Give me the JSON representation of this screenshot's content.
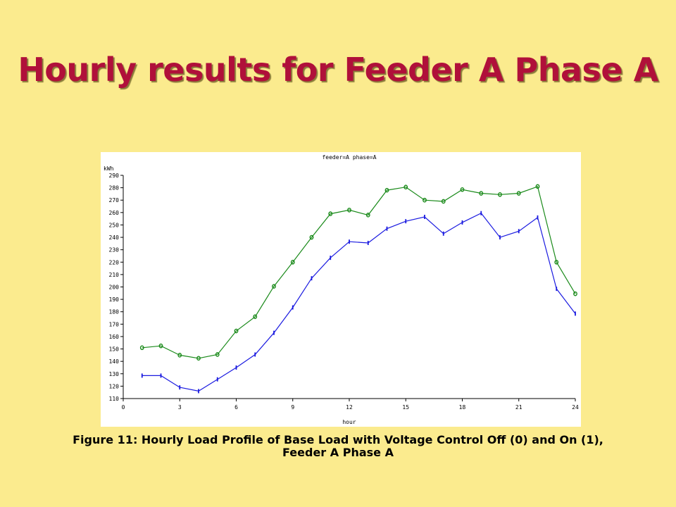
{
  "slide": {
    "title": "Hourly results for Feeder A Phase A",
    "caption_line1": "Figure 11: Hourly Load Profile of Base Load with Voltage Control Off (0) and On (1),",
    "caption_line2": "Feeder A Phase A"
  },
  "colors": {
    "background": "#FBEB8E",
    "title": "#B0103A",
    "series_off": "#1A8A1A",
    "series_on": "#1A1AE0"
  },
  "chart_data": {
    "type": "line",
    "title": "feeder=A phase=A",
    "xlabel": "hour",
    "ylabel": "kWh",
    "xlim": [
      0,
      24
    ],
    "ylim": [
      110,
      290
    ],
    "xticks": [
      0,
      3,
      6,
      9,
      12,
      15,
      18,
      21,
      24
    ],
    "yticks": [
      110,
      120,
      130,
      140,
      150,
      160,
      170,
      180,
      190,
      200,
      210,
      220,
      230,
      240,
      250,
      260,
      270,
      280,
      290
    ],
    "grid": false,
    "legend": "none",
    "x": [
      1,
      2,
      3,
      4,
      5,
      6,
      7,
      8,
      9,
      10,
      11,
      12,
      13,
      14,
      15,
      16,
      17,
      18,
      19,
      20,
      21,
      22,
      23,
      24
    ],
    "series": [
      {
        "marker": "0",
        "color": "#1A8A1A",
        "values": [
          151,
          152.5,
          145,
          142.5,
          145.5,
          164.5,
          176,
          200.5,
          220,
          240,
          259,
          262,
          258,
          278,
          280.5,
          270,
          269,
          278.5,
          275.5,
          274.5,
          275.5,
          281,
          220,
          194.5
        ]
      },
      {
        "marker": "1",
        "color": "#1A1AE0",
        "values": [
          128.5,
          128.5,
          119,
          116,
          125.5,
          135,
          145.5,
          163,
          183.5,
          207,
          223.5,
          236.5,
          235.5,
          247,
          253,
          256.5,
          243,
          252,
          259.5,
          240,
          245,
          256,
          198.5,
          178.5
        ]
      }
    ]
  }
}
